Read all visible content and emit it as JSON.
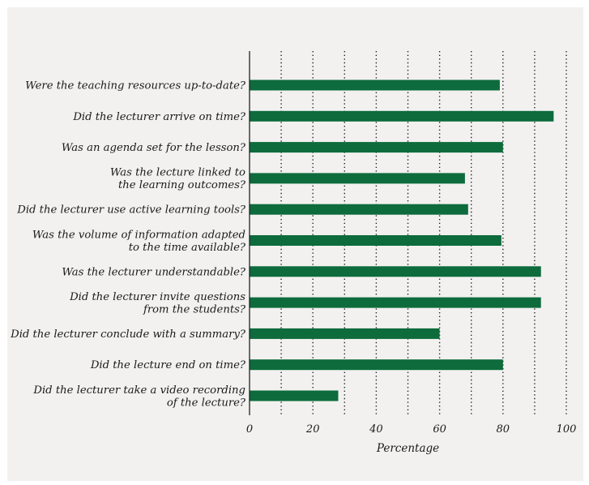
{
  "chart_data": {
    "type": "bar",
    "orientation": "horizontal",
    "categories": [
      [
        "Were the teaching resources up-to-date?"
      ],
      [
        "Did the lecturer arrive on time?"
      ],
      [
        "Was an agenda set for the lesson?"
      ],
      [
        "Was the lecture linked to",
        "the learning outcomes?"
      ],
      [
        "Did the lecturer use active learning tools?"
      ],
      [
        "Was the volume of information adapted",
        "to the time available?"
      ],
      [
        "Was the lecturer understandable?"
      ],
      [
        "Did the lecturer invite questions",
        "from the students?"
      ],
      [
        "Did the lecturer conclude with a summary?"
      ],
      [
        "Did the lecture end on time?"
      ],
      [
        "Did the lecturer take a video recording",
        "of the lecture?"
      ]
    ],
    "values": [
      79,
      96,
      80,
      68,
      69,
      79.5,
      92,
      92,
      60,
      80,
      28
    ],
    "xlabel": "Percentage",
    "ylabel": "",
    "xlim": [
      0,
      100
    ],
    "xticks": [
      "0",
      "20",
      "40",
      "60",
      "80",
      "100"
    ],
    "grid": "vertical dotted lines every 10",
    "bar_color": "#0d6b3c"
  }
}
